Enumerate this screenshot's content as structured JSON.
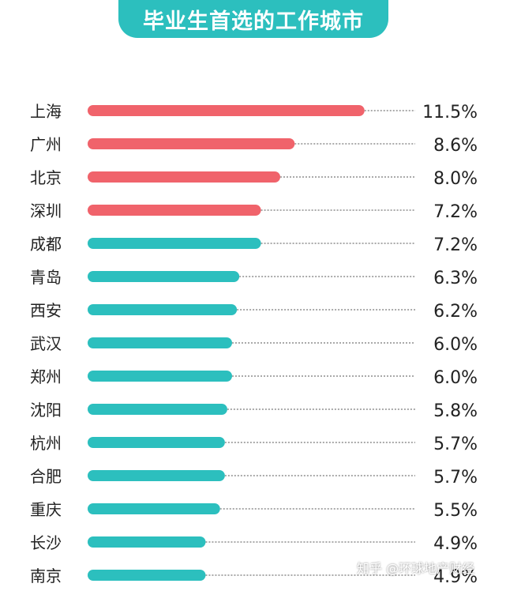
{
  "title": "毕业生首选的工作城市",
  "watermark": "知乎 @环球地产财经",
  "colors": {
    "highlight": "#f0636b",
    "normal": "#2cbfbe",
    "leader": "#555555",
    "text": "#222222"
  },
  "chart_data": {
    "type": "bar",
    "orientation": "horizontal",
    "title": "毕业生首选的工作城市",
    "categories": [
      "上海",
      "广州",
      "北京",
      "深圳",
      "成都",
      "青岛",
      "西安",
      "武汉",
      "郑州",
      "沈阳",
      "杭州",
      "合肥",
      "重庆",
      "长沙",
      "南京"
    ],
    "values": [
      11.5,
      8.6,
      8.0,
      7.2,
      7.2,
      6.3,
      6.2,
      6.0,
      6.0,
      5.8,
      5.7,
      5.7,
      5.5,
      4.9,
      4.9
    ],
    "labels": [
      "11.5%",
      "8.6%",
      "8.0%",
      "7.2%",
      "7.2%",
      "6.3%",
      "6.2%",
      "6.0%",
      "6.0%",
      "5.8%",
      "5.7%",
      "5.7%",
      "5.5%",
      "4.9%",
      "4.9%"
    ],
    "highlighted_count": 4,
    "unit": "%",
    "grid": false,
    "legend": "none"
  }
}
